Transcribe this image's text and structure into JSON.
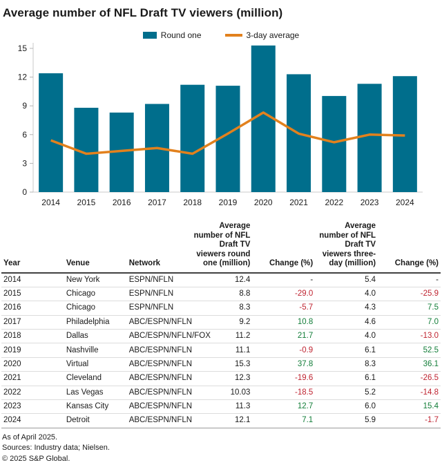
{
  "title": "Average number of NFL Draft TV viewers (million)",
  "legend": {
    "round_one": "Round one",
    "three_day": "3-day average"
  },
  "colors": {
    "bar": "#006e8c",
    "line": "#e2811d",
    "negative": "#bf2330",
    "positive": "#127d38",
    "axis": "#c9c9c9",
    "tick": "#b3b3b3",
    "text": "#1a1a1a"
  },
  "chart_data": {
    "type": "bar",
    "categories": [
      "2014",
      "2015",
      "2016",
      "2017",
      "2018",
      "2019",
      "2020",
      "2021",
      "2022",
      "2023",
      "2024"
    ],
    "series": [
      {
        "name": "Round one",
        "type": "bar",
        "values": [
          12.4,
          8.8,
          8.3,
          9.2,
          11.2,
          11.1,
          15.3,
          12.3,
          10.03,
          11.3,
          12.1
        ]
      },
      {
        "name": "3-day average",
        "type": "line",
        "values": [
          5.4,
          4.0,
          4.3,
          4.6,
          4.0,
          6.1,
          8.3,
          6.1,
          5.2,
          6.0,
          5.9
        ]
      }
    ],
    "title": "Average number of NFL Draft TV viewers (million)",
    "xlabel": "",
    "ylabel": "",
    "ylim": [
      0,
      15
    ],
    "yticks": [
      0,
      3,
      6,
      9,
      12,
      15
    ],
    "grid": false,
    "legend_position": "top"
  },
  "table": {
    "columns": [
      {
        "label": "Year",
        "align": "al"
      },
      {
        "label": "Venue",
        "align": "al"
      },
      {
        "label": "Network",
        "align": "al"
      },
      {
        "label": "Average number of NFL Draft TV viewers round one (million)",
        "align": "ar"
      },
      {
        "label": "Change (%)",
        "align": "ar"
      },
      {
        "label": "Average number of NFL Draft TV viewers three-day (million)",
        "align": "ar"
      },
      {
        "label": "Change (%)",
        "align": "ar"
      }
    ],
    "rows": [
      [
        "2014",
        "New York",
        "ESPN/NFLN",
        "12.4",
        "-",
        "5.4",
        "-"
      ],
      [
        "2015",
        "Chicago",
        "ESPN/NFLN",
        "8.8",
        "-29.0",
        "4.0",
        "-25.9"
      ],
      [
        "2016",
        "Chicago",
        "ESPN/NFLN",
        "8.3",
        "-5.7",
        "4.3",
        "7.5"
      ],
      [
        "2017",
        "Philadelphia",
        "ABC/ESPN/NFLN",
        "9.2",
        "10.8",
        "4.6",
        "7.0"
      ],
      [
        "2018",
        "Dallas",
        "ABC/ESPN/NFLN/FOX",
        "11.2",
        "21.7",
        "4.0",
        "-13.0"
      ],
      [
        "2019",
        "Nashville",
        "ABC/ESPN/NFLN",
        "11.1",
        "-0.9",
        "6.1",
        "52.5"
      ],
      [
        "2020",
        "Virtual",
        "ABC/ESPN/NFLN",
        "15.3",
        "37.8",
        "8.3",
        "36.1"
      ],
      [
        "2021",
        "Cleveland",
        "ABC/ESPN/NFLN",
        "12.3",
        "-19.6",
        "6.1",
        "-26.5"
      ],
      [
        "2022",
        "Las Vegas",
        "ABC/ESPN/NFLN",
        "10.03",
        "-18.5",
        "5.2",
        "-14.8"
      ],
      [
        "2023",
        "Kansas City",
        "ABC/ESPN/NFLN",
        "11.3",
        "12.7",
        "6.0",
        "15.4"
      ],
      [
        "2024",
        "Detroit",
        "ABC/ESPN/NFLN",
        "12.1",
        "7.1",
        "5.9",
        "-1.7"
      ]
    ]
  },
  "footnotes": [
    "As of April 2025.",
    "Sources: Industry data; Nielsen.",
    "© 2025 S&P Global."
  ]
}
